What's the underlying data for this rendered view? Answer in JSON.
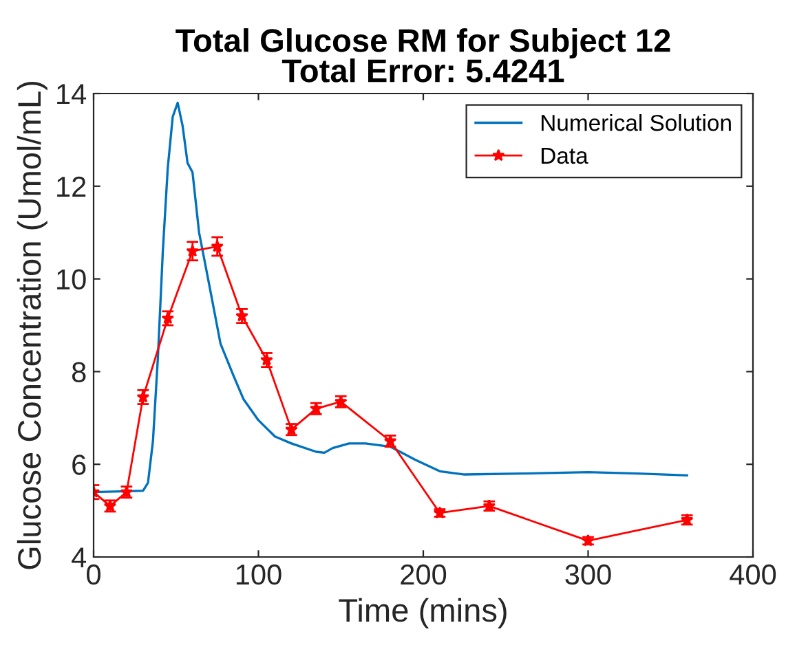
{
  "chart_data": {
    "type": "line",
    "title": "Total Glucose RM for Subject 12\nTotal Error: 5.4241",
    "xlabel": "Time (mins)",
    "ylabel": "Glucose Concentration (Umol/mL)",
    "xlim": [
      0,
      400
    ],
    "ylim": [
      4,
      14
    ],
    "xticks": [
      0,
      100,
      200,
      300,
      400
    ],
    "yticks": [
      4,
      6,
      8,
      10,
      12,
      14
    ],
    "grid": false,
    "legend": "top right",
    "series": [
      {
        "name": "Numerical Solution",
        "color": "#0072bd",
        "marker": "none",
        "x": [
          0,
          20,
          30,
          33,
          36,
          39,
          42,
          45,
          48,
          51,
          54,
          57,
          60,
          64,
          70,
          77,
          85,
          91,
          100,
          110,
          120,
          135,
          140,
          145,
          155,
          165,
          180,
          195,
          210,
          225,
          260,
          300,
          330,
          360
        ],
        "values": [
          5.4,
          5.42,
          5.43,
          5.6,
          6.5,
          8.3,
          10.6,
          12.4,
          13.5,
          13.8,
          13.3,
          12.5,
          12.3,
          11.0,
          9.9,
          8.6,
          7.9,
          7.4,
          6.95,
          6.6,
          6.45,
          6.27,
          6.25,
          6.35,
          6.45,
          6.45,
          6.38,
          6.1,
          5.85,
          5.78,
          5.8,
          5.83,
          5.8,
          5.76
        ]
      },
      {
        "name": "Data",
        "color": "#ff0000",
        "marker": "star",
        "x": [
          0,
          10,
          20,
          30,
          45,
          60,
          75,
          90,
          105,
          120,
          135,
          150,
          180,
          210,
          240,
          300,
          360
        ],
        "values": [
          5.4,
          5.1,
          5.4,
          7.45,
          9.15,
          10.6,
          10.7,
          9.2,
          8.25,
          6.75,
          7.2,
          7.35,
          6.5,
          4.95,
          5.1,
          4.35,
          4.8
        ],
        "errors": [
          0.15,
          0.12,
          0.12,
          0.15,
          0.15,
          0.2,
          0.2,
          0.15,
          0.15,
          0.12,
          0.12,
          0.12,
          0.12,
          0.08,
          0.1,
          0.08,
          0.1
        ]
      }
    ]
  }
}
